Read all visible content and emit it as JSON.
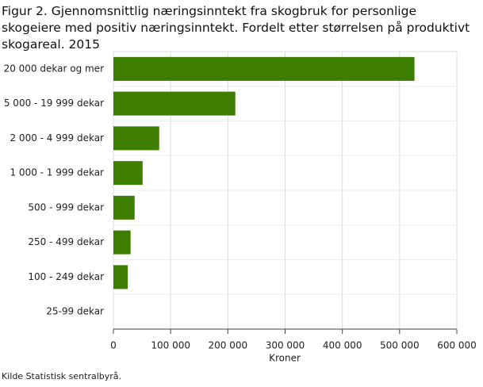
{
  "chart_data": {
    "type": "bar",
    "orientation": "horizontal",
    "title": "Figur 2. Gjennomsnittlig næringsinntekt fra skogbruk for personlige skogeiere med positiv næringsinntekt. Fordelt etter størrelsen på produktivt skogareal. 2015",
    "categories": [
      "20 000 dekar og mer",
      "5 000 - 19 999 dekar",
      "2 000 - 4 999 dekar",
      "1 000 - 1 999 dekar",
      "500 - 999 dekar",
      "250 - 499 dekar",
      "100 - 249 dekar",
      "25-99 dekar"
    ],
    "values": [
      526000,
      213000,
      80000,
      51000,
      37000,
      30000,
      25000,
      0
    ],
    "color": "#3d7e00",
    "xlim": [
      0,
      600000
    ],
    "xticks": [
      0,
      {
        "value": 100000,
        "label": "100 000"
      },
      {
        "value": 200000,
        "label": "200 000"
      },
      {
        "value": 300000,
        "label": "300 000"
      },
      {
        "value": 400000,
        "label": "400 000"
      },
      {
        "value": 500000,
        "label": "500 000"
      },
      {
        "value": 600000,
        "label": "600 000"
      }
    ],
    "xlabel": "Kroner",
    "grid": true,
    "source": "Kilde Statistisk sentralbyrå."
  }
}
